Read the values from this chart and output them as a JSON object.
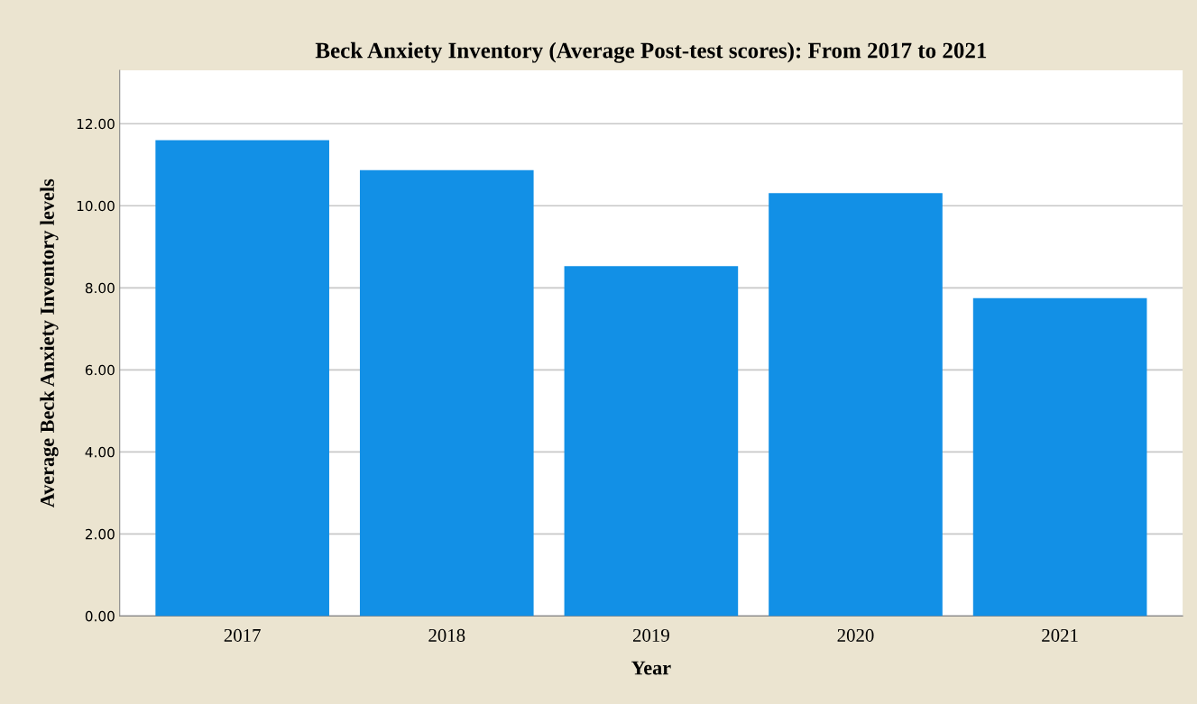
{
  "chart_data": {
    "type": "bar",
    "title": "Beck Anxiety Inventory (Average Post-test scores): From 2017 to 2021",
    "xlabel": "Year",
    "ylabel": "Average Beck Anxiety Inventory levels",
    "categories": [
      "2017",
      "2018",
      "2019",
      "2020",
      "2021"
    ],
    "values": [
      11.6,
      10.87,
      8.53,
      10.31,
      7.75
    ],
    "color": "#1290e6",
    "ylim": [
      0,
      13.3
    ],
    "yticks": [
      {
        "value": 0,
        "label": "0.00"
      },
      {
        "value": 2,
        "label": "2.00"
      },
      {
        "value": 4,
        "label": "4.00"
      },
      {
        "value": 6,
        "label": "6.00"
      },
      {
        "value": 8,
        "label": "8.00"
      },
      {
        "value": 10,
        "label": "10.00"
      },
      {
        "value": 12,
        "label": "12.00"
      }
    ],
    "grid": "y"
  }
}
